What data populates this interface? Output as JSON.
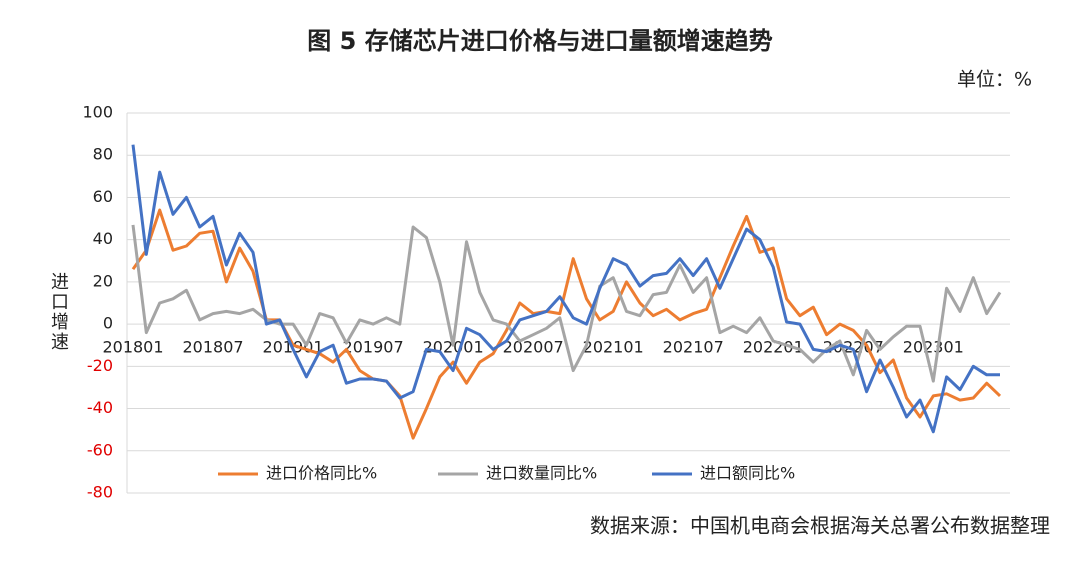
{
  "chart_data": {
    "type": "line",
    "title": "图 5 存储芯片进口价格与进口量额增速趋势",
    "unit": "单位：%",
    "y_label": "进口增速",
    "source": "数据来源：中国机电商会根据海关总署公布数据整理",
    "categories": [
      "201801",
      null,
      null,
      null,
      null,
      null,
      "201807",
      null,
      null,
      null,
      null,
      null,
      "201901",
      null,
      null,
      null,
      null,
      null,
      "201907",
      null,
      null,
      null,
      null,
      null,
      "202001",
      null,
      null,
      null,
      null,
      null,
      "202007",
      null,
      null,
      null,
      null,
      null,
      "202101",
      null,
      null,
      null,
      null,
      null,
      "202107",
      null,
      null,
      null,
      null,
      null,
      "202201",
      null,
      null,
      null,
      null,
      null,
      "202207",
      null,
      null,
      null,
      null,
      null,
      "202301",
      null,
      null,
      null,
      null,
      null
    ],
    "series": [
      {
        "name": "进口价格同比%",
        "color": "#ed7d31",
        "values": [
          26,
          35,
          54,
          35,
          37,
          43,
          44,
          20,
          36,
          25,
          2,
          2,
          -10,
          -12,
          -14,
          -18,
          -12,
          -22,
          -26,
          -27,
          -34,
          -54,
          -40,
          -25,
          -18,
          -28,
          -18,
          -14,
          -3,
          10,
          5,
          6,
          5,
          31,
          12,
          2,
          6,
          20,
          10,
          4,
          7,
          2,
          5,
          7,
          22,
          37,
          51,
          34,
          36,
          12,
          4,
          8,
          -5,
          0,
          -3,
          -10,
          -23,
          -17,
          -35,
          -44,
          -34,
          -33,
          -36,
          -35,
          -28,
          -34
        ]
      },
      {
        "name": "进口数量同比%",
        "color": "#a5a5a5",
        "values": [
          47,
          -4,
          10,
          12,
          16,
          2,
          5,
          6,
          5,
          7,
          2,
          0,
          0,
          -10,
          5,
          3,
          -9,
          2,
          0,
          3,
          0,
          46,
          41,
          20,
          -10,
          39,
          15,
          2,
          0,
          -8,
          -5,
          -2,
          3,
          -22,
          -10,
          18,
          22,
          6,
          4,
          14,
          15,
          28,
          15,
          22,
          -4,
          -1,
          -4,
          3,
          -8,
          -10,
          -12,
          -18,
          -12,
          -8,
          -24,
          -3,
          -12,
          -6,
          -1,
          -1,
          -27,
          17,
          6,
          22,
          5,
          15
        ]
      },
      {
        "name": "进口额同比%",
        "color": "#4472c4",
        "values": [
          85,
          33,
          72,
          52,
          60,
          46,
          51,
          28,
          43,
          34,
          0,
          2,
          -12,
          -25,
          -13,
          -10,
          -28,
          -26,
          -26,
          -27,
          -35,
          -32,
          -12,
          -13,
          -22,
          -2,
          -5,
          -12,
          -8,
          2,
          4,
          6,
          13,
          3,
          0,
          17,
          31,
          28,
          18,
          23,
          24,
          31,
          23,
          31,
          17,
          31,
          45,
          40,
          27,
          1,
          0,
          -12,
          -13,
          -10,
          -12,
          -32,
          -17,
          -30,
          -44,
          -36,
          -51,
          -25,
          -31,
          -20,
          -24,
          -24
        ]
      }
    ],
    "ylim": [
      -80,
      100
    ],
    "yticks": [
      -80,
      -60,
      -40,
      -20,
      0,
      20,
      40,
      60,
      80,
      100
    ],
    "grid": true
  }
}
